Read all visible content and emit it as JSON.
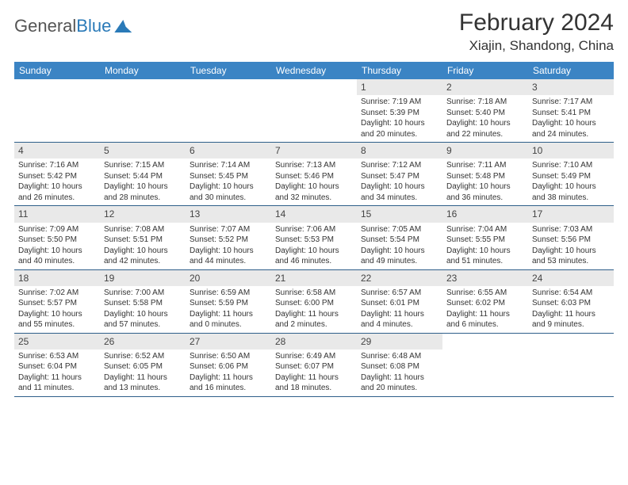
{
  "brand": {
    "name_a": "General",
    "name_b": "Blue"
  },
  "title": "February 2024",
  "location": "Xiajin, Shandong, China",
  "colors": {
    "header_bg": "#3b84c4",
    "header_text": "#ffffff",
    "daynum_bg": "#e9e9e9",
    "week_divider": "#2e5f8a",
    "brand_blue": "#2a7ab8",
    "text": "#333333"
  },
  "day_names": [
    "Sunday",
    "Monday",
    "Tuesday",
    "Wednesday",
    "Thursday",
    "Friday",
    "Saturday"
  ],
  "weeks": [
    [
      {
        "n": "",
        "sr": "",
        "ss": "",
        "dl": ""
      },
      {
        "n": "",
        "sr": "",
        "ss": "",
        "dl": ""
      },
      {
        "n": "",
        "sr": "",
        "ss": "",
        "dl": ""
      },
      {
        "n": "",
        "sr": "",
        "ss": "",
        "dl": ""
      },
      {
        "n": "1",
        "sr": "Sunrise: 7:19 AM",
        "ss": "Sunset: 5:39 PM",
        "dl": "Daylight: 10 hours and 20 minutes."
      },
      {
        "n": "2",
        "sr": "Sunrise: 7:18 AM",
        "ss": "Sunset: 5:40 PM",
        "dl": "Daylight: 10 hours and 22 minutes."
      },
      {
        "n": "3",
        "sr": "Sunrise: 7:17 AM",
        "ss": "Sunset: 5:41 PM",
        "dl": "Daylight: 10 hours and 24 minutes."
      }
    ],
    [
      {
        "n": "4",
        "sr": "Sunrise: 7:16 AM",
        "ss": "Sunset: 5:42 PM",
        "dl": "Daylight: 10 hours and 26 minutes."
      },
      {
        "n": "5",
        "sr": "Sunrise: 7:15 AM",
        "ss": "Sunset: 5:44 PM",
        "dl": "Daylight: 10 hours and 28 minutes."
      },
      {
        "n": "6",
        "sr": "Sunrise: 7:14 AM",
        "ss": "Sunset: 5:45 PM",
        "dl": "Daylight: 10 hours and 30 minutes."
      },
      {
        "n": "7",
        "sr": "Sunrise: 7:13 AM",
        "ss": "Sunset: 5:46 PM",
        "dl": "Daylight: 10 hours and 32 minutes."
      },
      {
        "n": "8",
        "sr": "Sunrise: 7:12 AM",
        "ss": "Sunset: 5:47 PM",
        "dl": "Daylight: 10 hours and 34 minutes."
      },
      {
        "n": "9",
        "sr": "Sunrise: 7:11 AM",
        "ss": "Sunset: 5:48 PM",
        "dl": "Daylight: 10 hours and 36 minutes."
      },
      {
        "n": "10",
        "sr": "Sunrise: 7:10 AM",
        "ss": "Sunset: 5:49 PM",
        "dl": "Daylight: 10 hours and 38 minutes."
      }
    ],
    [
      {
        "n": "11",
        "sr": "Sunrise: 7:09 AM",
        "ss": "Sunset: 5:50 PM",
        "dl": "Daylight: 10 hours and 40 minutes."
      },
      {
        "n": "12",
        "sr": "Sunrise: 7:08 AM",
        "ss": "Sunset: 5:51 PM",
        "dl": "Daylight: 10 hours and 42 minutes."
      },
      {
        "n": "13",
        "sr": "Sunrise: 7:07 AM",
        "ss": "Sunset: 5:52 PM",
        "dl": "Daylight: 10 hours and 44 minutes."
      },
      {
        "n": "14",
        "sr": "Sunrise: 7:06 AM",
        "ss": "Sunset: 5:53 PM",
        "dl": "Daylight: 10 hours and 46 minutes."
      },
      {
        "n": "15",
        "sr": "Sunrise: 7:05 AM",
        "ss": "Sunset: 5:54 PM",
        "dl": "Daylight: 10 hours and 49 minutes."
      },
      {
        "n": "16",
        "sr": "Sunrise: 7:04 AM",
        "ss": "Sunset: 5:55 PM",
        "dl": "Daylight: 10 hours and 51 minutes."
      },
      {
        "n": "17",
        "sr": "Sunrise: 7:03 AM",
        "ss": "Sunset: 5:56 PM",
        "dl": "Daylight: 10 hours and 53 minutes."
      }
    ],
    [
      {
        "n": "18",
        "sr": "Sunrise: 7:02 AM",
        "ss": "Sunset: 5:57 PM",
        "dl": "Daylight: 10 hours and 55 minutes."
      },
      {
        "n": "19",
        "sr": "Sunrise: 7:00 AM",
        "ss": "Sunset: 5:58 PM",
        "dl": "Daylight: 10 hours and 57 minutes."
      },
      {
        "n": "20",
        "sr": "Sunrise: 6:59 AM",
        "ss": "Sunset: 5:59 PM",
        "dl": "Daylight: 11 hours and 0 minutes."
      },
      {
        "n": "21",
        "sr": "Sunrise: 6:58 AM",
        "ss": "Sunset: 6:00 PM",
        "dl": "Daylight: 11 hours and 2 minutes."
      },
      {
        "n": "22",
        "sr": "Sunrise: 6:57 AM",
        "ss": "Sunset: 6:01 PM",
        "dl": "Daylight: 11 hours and 4 minutes."
      },
      {
        "n": "23",
        "sr": "Sunrise: 6:55 AM",
        "ss": "Sunset: 6:02 PM",
        "dl": "Daylight: 11 hours and 6 minutes."
      },
      {
        "n": "24",
        "sr": "Sunrise: 6:54 AM",
        "ss": "Sunset: 6:03 PM",
        "dl": "Daylight: 11 hours and 9 minutes."
      }
    ],
    [
      {
        "n": "25",
        "sr": "Sunrise: 6:53 AM",
        "ss": "Sunset: 6:04 PM",
        "dl": "Daylight: 11 hours and 11 minutes."
      },
      {
        "n": "26",
        "sr": "Sunrise: 6:52 AM",
        "ss": "Sunset: 6:05 PM",
        "dl": "Daylight: 11 hours and 13 minutes."
      },
      {
        "n": "27",
        "sr": "Sunrise: 6:50 AM",
        "ss": "Sunset: 6:06 PM",
        "dl": "Daylight: 11 hours and 16 minutes."
      },
      {
        "n": "28",
        "sr": "Sunrise: 6:49 AM",
        "ss": "Sunset: 6:07 PM",
        "dl": "Daylight: 11 hours and 18 minutes."
      },
      {
        "n": "29",
        "sr": "Sunrise: 6:48 AM",
        "ss": "Sunset: 6:08 PM",
        "dl": "Daylight: 11 hours and 20 minutes."
      },
      {
        "n": "",
        "sr": "",
        "ss": "",
        "dl": ""
      },
      {
        "n": "",
        "sr": "",
        "ss": "",
        "dl": ""
      }
    ]
  ]
}
